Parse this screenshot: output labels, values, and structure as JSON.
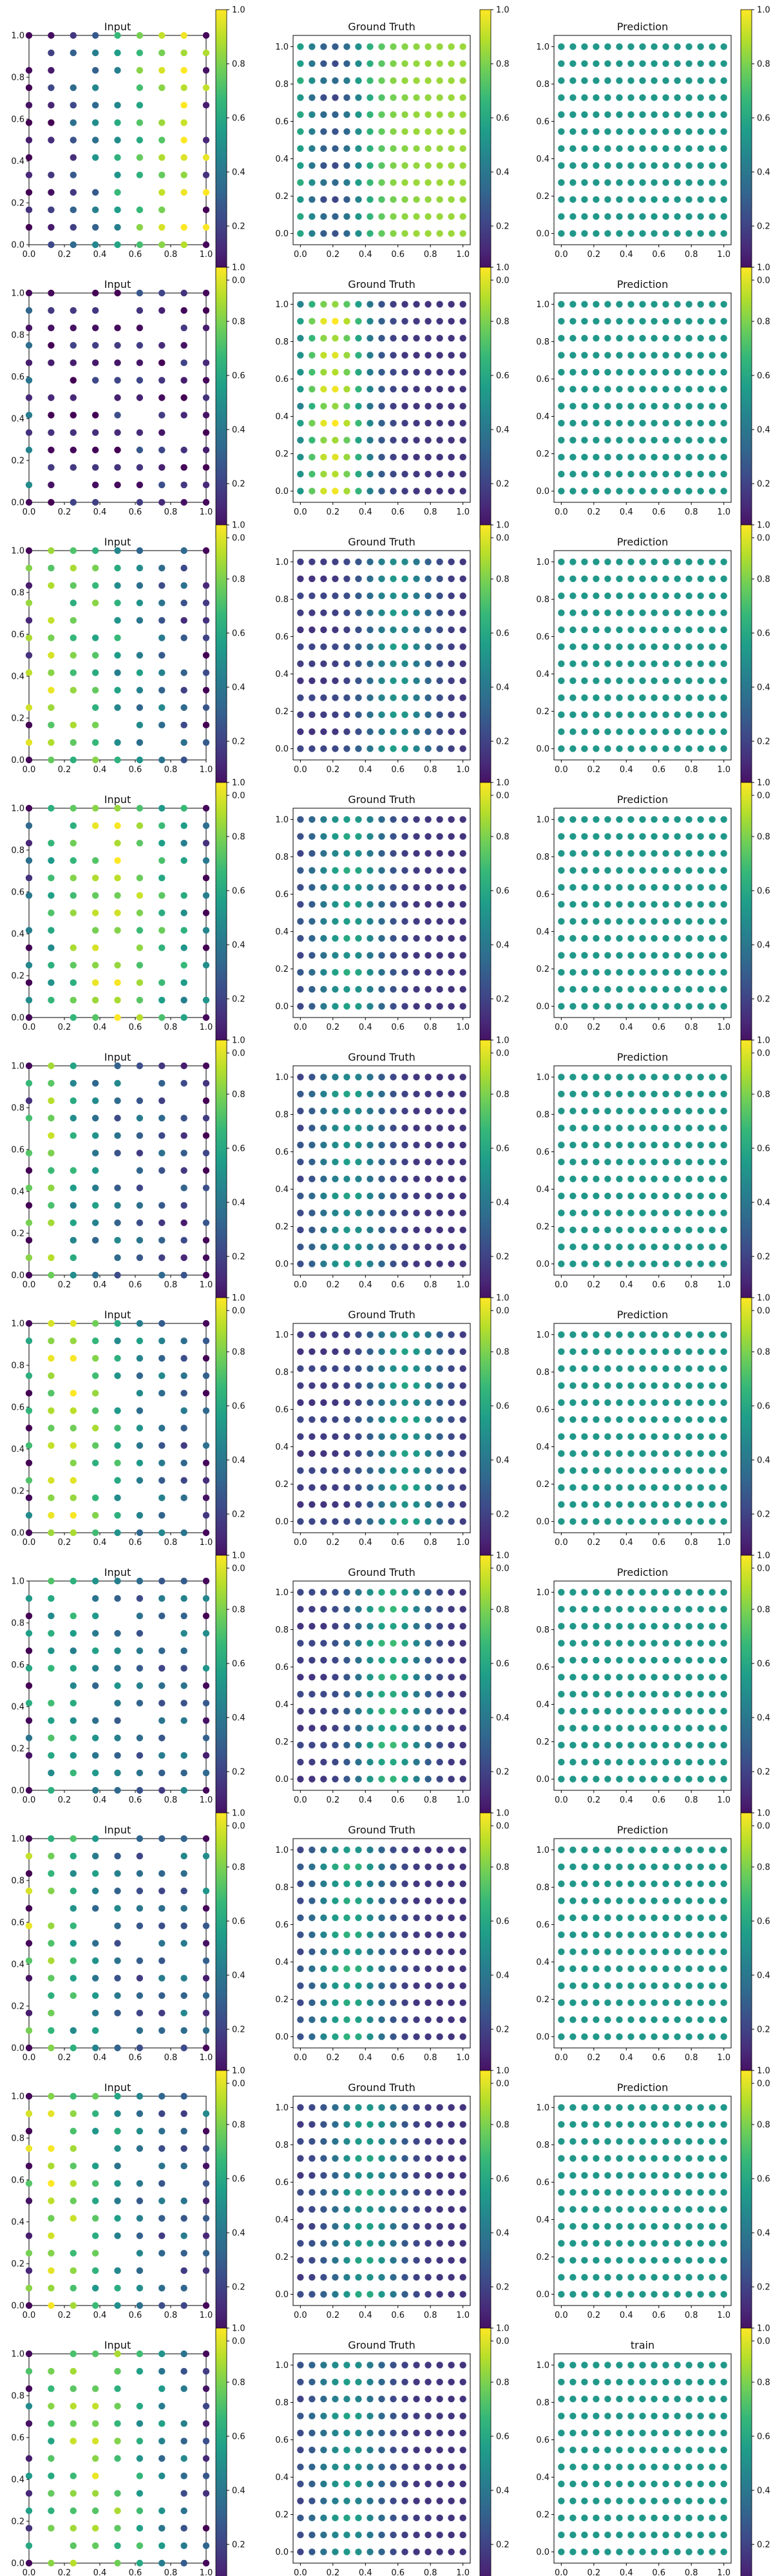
{
  "chart_data": {
    "type": "scatter",
    "layout": {
      "rows": 10,
      "cols": 3
    },
    "colormap": {
      "name": "viridis",
      "stops": [
        "#440154",
        "#482878",
        "#3e4a89",
        "#31688e",
        "#26828e",
        "#1f9e89",
        "#35b779",
        "#6ece58",
        "#b5de2b",
        "#fde725"
      ],
      "range": [
        0,
        1
      ]
    },
    "axes": {
      "xlim": [
        0,
        1
      ],
      "ylim": [
        0,
        1
      ],
      "xticks": [
        "0.0",
        "0.2",
        "0.4",
        "0.6",
        "0.8",
        "1.0"
      ],
      "yticks": [
        "0.0",
        "0.2",
        "0.4",
        "0.6",
        "0.8",
        "1.0"
      ]
    },
    "colorbar": {
      "ticks": [
        "0.0",
        "0.2",
        "0.4",
        "0.6",
        "0.8",
        "1.0"
      ],
      "range": [
        0,
        1
      ]
    },
    "input_grid": {
      "columns_x": [
        0.0,
        0.125,
        0.25,
        0.375,
        0.5,
        0.625,
        0.75,
        0.875,
        1.0
      ],
      "rows_y": 13
    },
    "gt_grid": {
      "nx": 15,
      "ny": 12
    },
    "prediction_value": 0.53,
    "rows": [
      {
        "titles": [
          "Input",
          "Ground Truth",
          "Prediction"
        ],
        "input_cols": [
          0.0,
          0.1,
          0.25,
          0.4,
          0.55,
          0.7,
          0.85,
          0.95,
          1.0
        ],
        "gt_profile": [
          0.2,
          0.7
        ],
        "gt_invert": true
      },
      {
        "titles": [
          "Input",
          "Ground Truth",
          "Prediction"
        ],
        "input_cols": [
          0.45,
          0.05,
          0.08,
          0.1,
          0.12,
          0.15,
          0.12,
          0.08,
          0.05
        ],
        "gt_profile": [
          0.2,
          0.95
        ],
        "gt_invert": false
      },
      {
        "titles": [
          "Input",
          "Ground Truth",
          "Prediction"
        ],
        "input_cols": [
          0.9,
          0.85,
          0.75,
          0.7,
          0.55,
          0.45,
          0.35,
          0.25,
          0.2
        ],
        "gt_profile": [
          0.6,
          0.45
        ],
        "gt_invert": false
      },
      {
        "titles": [
          "Input",
          "Ground Truth",
          "Prediction"
        ],
        "input_cols": [
          0.4,
          0.6,
          0.75,
          0.85,
          0.9,
          0.8,
          0.65,
          0.55,
          0.4
        ],
        "gt_profile": [
          0.3,
          0.5
        ],
        "gt_invert": false
      },
      {
        "titles": [
          "Input",
          "Ground Truth",
          "Prediction"
        ],
        "input_cols": [
          0.7,
          0.8,
          0.55,
          0.45,
          0.35,
          0.3,
          0.25,
          0.2,
          0.15
        ],
        "gt_profile": [
          0.3,
          0.45
        ],
        "gt_invert": false
      },
      {
        "titles": [
          "Input",
          "Ground Truth",
          "Prediction"
        ],
        "input_cols": [
          0.6,
          0.85,
          0.9,
          0.75,
          0.6,
          0.45,
          0.35,
          0.3,
          0.25
        ],
        "gt_profile": [
          0.65,
          0.5
        ],
        "gt_invert": false
      },
      {
        "titles": [
          "Input",
          "Ground Truth",
          "Prediction"
        ],
        "input_cols": [
          0.5,
          0.6,
          0.55,
          0.45,
          0.4,
          0.35,
          0.3,
          0.35,
          0.4
        ],
        "gt_profile": [
          0.55,
          0.6
        ],
        "gt_invert": false
      },
      {
        "titles": [
          "Input",
          "Ground Truth",
          "Prediction"
        ],
        "input_cols": [
          0.85,
          0.75,
          0.6,
          0.45,
          0.35,
          0.3,
          0.3,
          0.35,
          0.4
        ],
        "gt_profile": [
          0.3,
          0.55
        ],
        "gt_invert": false
      },
      {
        "titles": [
          "Input",
          "Ground Truth",
          "Prediction"
        ],
        "input_cols": [
          0.85,
          0.9,
          0.8,
          0.65,
          0.5,
          0.4,
          0.3,
          0.3,
          0.35
        ],
        "gt_profile": [
          0.4,
          0.5
        ],
        "gt_invert": false
      },
      {
        "titles": [
          "Input",
          "Ground Truth",
          "train"
        ],
        "input_cols": [
          0.6,
          0.7,
          0.8,
          0.85,
          0.75,
          0.6,
          0.45,
          0.35,
          0.3
        ],
        "gt_profile": [
          0.3,
          0.45
        ],
        "gt_invert": false
      }
    ]
  }
}
